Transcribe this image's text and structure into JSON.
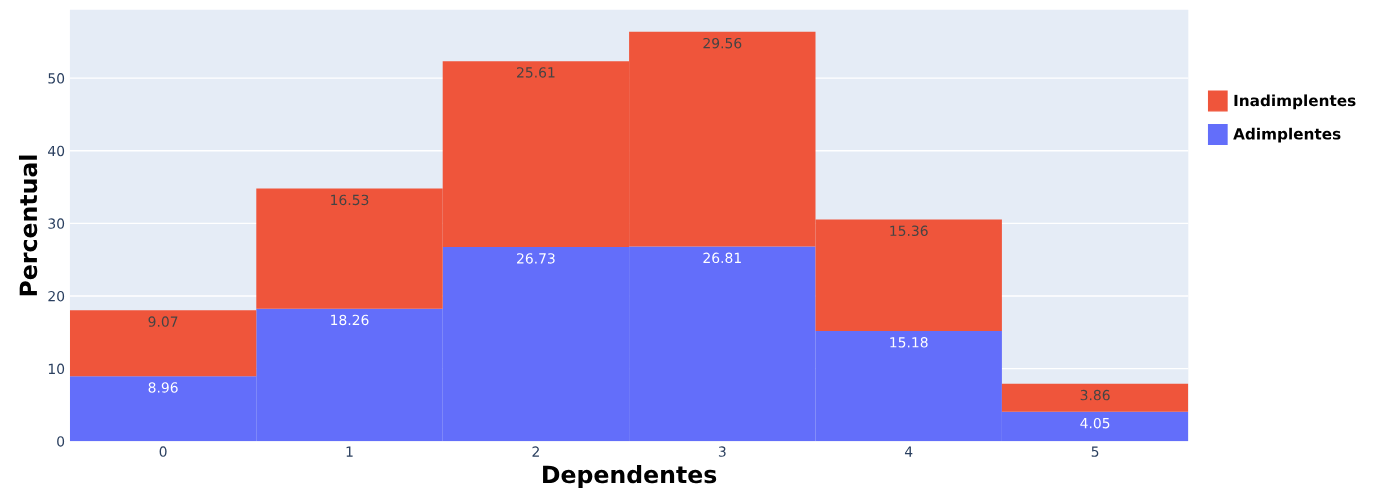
{
  "chart_data": {
    "type": "bar",
    "stacked": true,
    "xlabel": "Dependentes",
    "ylabel": "Percentual",
    "categories": [
      "0",
      "1",
      "2",
      "3",
      "4",
      "5"
    ],
    "series": [
      {
        "name": "Adimplentes",
        "color": "#636efa",
        "values": [
          8.96,
          18.26,
          26.73,
          26.81,
          15.18,
          4.05
        ]
      },
      {
        "name": "Inadimplentes",
        "color": "#ef553b",
        "values": [
          9.07,
          16.53,
          25.61,
          29.56,
          15.36,
          3.86
        ]
      }
    ],
    "ylim": [
      0,
      59.4
    ],
    "yticks": [
      0,
      10,
      20,
      30,
      40,
      50
    ],
    "grid": "y",
    "legend": "right",
    "data_labels": true
  }
}
